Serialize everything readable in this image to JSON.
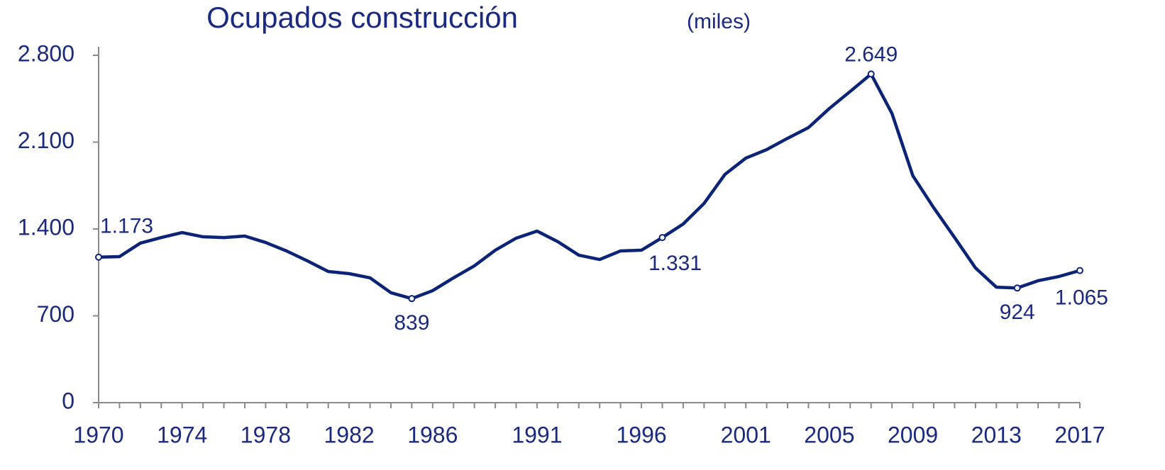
{
  "chart_data": {
    "type": "line",
    "title": "Ocupados construcción",
    "unit_label": "(miles)",
    "categories": [
      "1970",
      null,
      null,
      null,
      "1974",
      null,
      null,
      null,
      "1978",
      null,
      null,
      null,
      "1982",
      null,
      null,
      null,
      "1986",
      null,
      null,
      null,
      null,
      "1991",
      null,
      null,
      null,
      null,
      "1996",
      null,
      null,
      null,
      null,
      "2001",
      null,
      null,
      null,
      "2005",
      null,
      null,
      null,
      "2009",
      null,
      null,
      null,
      "2013",
      null,
      null,
      null,
      "2017"
    ],
    "series": [
      {
        "name": "Ocupados construcción",
        "color": "#0b2478",
        "values": [
          1173,
          1177,
          1286,
          1331,
          1371,
          1337,
          1331,
          1343,
          1291,
          1223,
          1143,
          1057,
          1040,
          1006,
          886,
          839,
          903,
          1006,
          1103,
          1229,
          1326,
          1383,
          1297,
          1189,
          1154,
          1223,
          1229,
          1331,
          1440,
          1606,
          1840,
          1971,
          2040,
          2131,
          2217,
          2371,
          2509,
          2649,
          2331,
          1829,
          1571,
          1331,
          1086,
          931,
          924,
          983,
          1017,
          1065
        ],
        "value_labels": [
          "1.173",
          null,
          null,
          null,
          null,
          null,
          null,
          null,
          null,
          null,
          null,
          null,
          null,
          null,
          null,
          "839",
          null,
          null,
          null,
          null,
          null,
          null,
          null,
          null,
          null,
          null,
          null,
          "1.331",
          null,
          null,
          null,
          null,
          null,
          null,
          null,
          null,
          null,
          "2.649",
          null,
          null,
          null,
          null,
          null,
          null,
          "924",
          null,
          null,
          "1.065"
        ]
      }
    ],
    "ylim": [
      0,
      2800
    ],
    "yticks": [
      0,
      700,
      {
        "value": 1400,
        "label": "1.400"
      },
      {
        "value": 2100,
        "label": "2.100"
      },
      {
        "value": 2800,
        "label": "2.800"
      }
    ],
    "grid": false
  }
}
